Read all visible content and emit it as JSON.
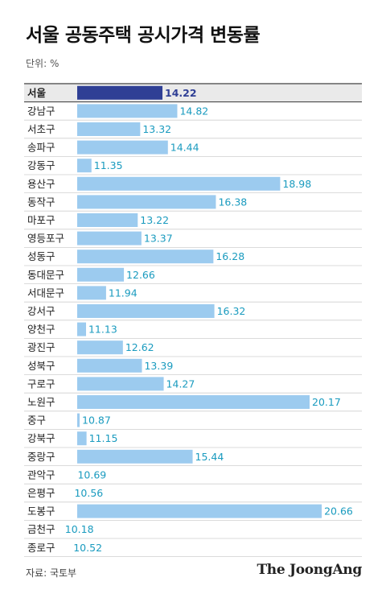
{
  "header": {
    "title": "서울 공동주택 공시가격 변동률",
    "unit": "단위: %"
  },
  "footer": {
    "source": "자료: 국토부",
    "brand": "The JoongAng"
  },
  "colors": {
    "highlight_bar": "#2f3f95",
    "highlight_label": "#2f3f95",
    "bar": "#9ccbef",
    "value_label": "#1a9bbf",
    "highlight_row_bg": "#eaeaea",
    "separator": "#cfcfcf",
    "rule": "#333333"
  },
  "chart_data": {
    "type": "bar",
    "orientation": "horizontal",
    "title": "서울 공동주택 공시가격 변동률",
    "unit": "%",
    "highlight": "서울",
    "xlim": [
      0,
      21
    ],
    "categories": [
      "서울",
      "강남구",
      "서초구",
      "송파구",
      "강동구",
      "용산구",
      "동작구",
      "마포구",
      "영등포구",
      "성동구",
      "동대문구",
      "서대문구",
      "강서구",
      "양천구",
      "광진구",
      "성북구",
      "구로구",
      "노원구",
      "중구",
      "강북구",
      "중랑구",
      "관악구",
      "은평구",
      "도봉구",
      "금천구",
      "종로구"
    ],
    "values": [
      14.22,
      14.82,
      13.32,
      14.44,
      11.35,
      18.98,
      16.38,
      13.22,
      13.37,
      16.28,
      12.66,
      11.94,
      16.32,
      11.13,
      12.62,
      13.39,
      14.27,
      20.17,
      10.87,
      11.15,
      15.44,
      10.69,
      10.56,
      20.66,
      10.18,
      10.52
    ]
  }
}
